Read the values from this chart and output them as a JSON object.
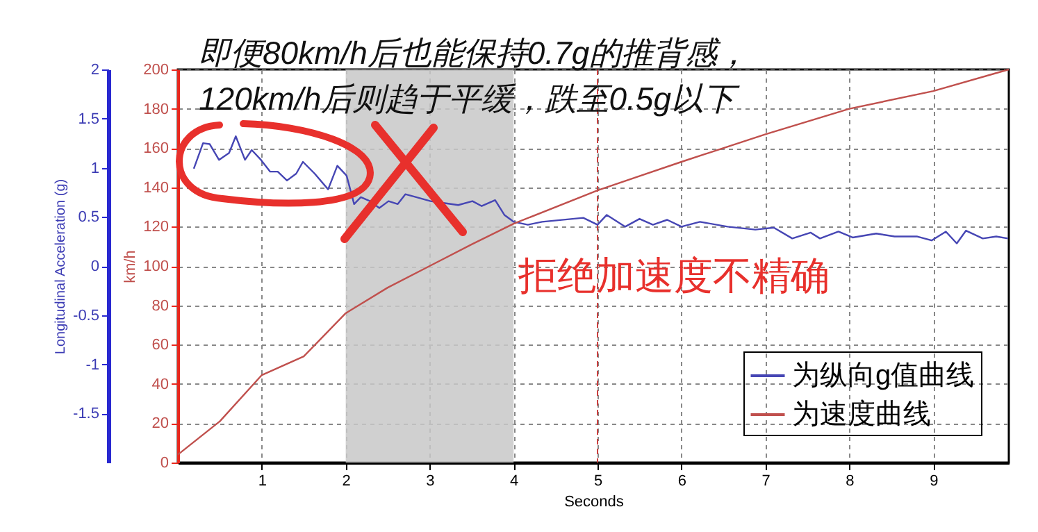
{
  "chart_data": {
    "type": "line",
    "title": "即便80km/h后也能保持0.7g的推背感，\n120km/h后则趋于平缓，跌至0.5g以下",
    "xlabel": "Seconds",
    "ylabel": "km/h",
    "y2label": "Longitudinal Acceleration (g)",
    "annotations": [
      "拒绝加速度不精确"
    ],
    "xlim": [
      0,
      9.9
    ],
    "xticks": [
      1,
      2,
      3,
      4,
      5,
      6,
      7,
      8,
      9
    ],
    "ylim": [
      0,
      200
    ],
    "yticks": [
      0,
      20,
      40,
      60,
      80,
      100,
      120,
      140,
      160,
      180,
      200
    ],
    "y2lim": [
      -2,
      2
    ],
    "y2ticks": [
      -1.5,
      -1,
      -0.5,
      0,
      0.5,
      1,
      1.5,
      2
    ],
    "grid": true,
    "legend": "bottom right",
    "bands": [
      {
        "axis": "x",
        "from": 2,
        "to": 4,
        "color": "#c8c8c8"
      }
    ],
    "ref_lines": [
      {
        "axis": "x",
        "value": 5,
        "color": "#c83c3c",
        "line_style": "dashed"
      }
    ],
    "series": [
      {
        "name": "为纵向g值曲线",
        "color": "#4646b4",
        "axis": "y2",
        "x": [
          0.19,
          0.3,
          0.38,
          0.49,
          0.61,
          0.69,
          0.8,
          0.88,
          0.99,
          1.1,
          1.19,
          1.3,
          1.41,
          1.49,
          1.63,
          1.79,
          1.9,
          2.01,
          2.1,
          2.18,
          2.29,
          2.4,
          2.51,
          2.62,
          2.71,
          2.84,
          3.01,
          3.18,
          3.34,
          3.51,
          3.62,
          3.78,
          3.89,
          4.0,
          4.17,
          4.34,
          4.83,
          5.0,
          5.11,
          5.33,
          5.5,
          5.66,
          5.83,
          6.0,
          6.22,
          6.55,
          6.88,
          7.1,
          7.32,
          7.54,
          7.65,
          7.87,
          8.04,
          8.32,
          8.54,
          8.81,
          8.98,
          9.15,
          9.28,
          9.39,
          9.59,
          9.75,
          9.89
        ],
        "values": [
          0.99,
          1.25,
          1.24,
          1.08,
          1.15,
          1.32,
          1.08,
          1.18,
          1.08,
          0.96,
          0.96,
          0.87,
          0.94,
          1.06,
          0.94,
          0.78,
          1.02,
          0.92,
          0.63,
          0.7,
          0.66,
          0.59,
          0.66,
          0.63,
          0.73,
          0.7,
          0.66,
          0.64,
          0.62,
          0.66,
          0.61,
          0.67,
          0.52,
          0.45,
          0.42,
          0.45,
          0.49,
          0.42,
          0.52,
          0.4,
          0.48,
          0.42,
          0.47,
          0.4,
          0.45,
          0.4,
          0.37,
          0.39,
          0.28,
          0.34,
          0.28,
          0.35,
          0.29,
          0.33,
          0.3,
          0.3,
          0.26,
          0.35,
          0.23,
          0.36,
          0.28,
          0.3,
          0.28
        ]
      },
      {
        "name": "为速度曲线",
        "color": "#c0504d",
        "x": [
          0,
          0.5,
          1,
          1.5,
          2,
          2.5,
          3,
          3.5,
          4,
          5,
          6,
          7,
          8,
          9,
          9.9
        ],
        "values": [
          4,
          21,
          44.5,
          54,
          76,
          89,
          100,
          111,
          121.5,
          138.5,
          153,
          167,
          180,
          189,
          200
        ]
      }
    ]
  }
}
